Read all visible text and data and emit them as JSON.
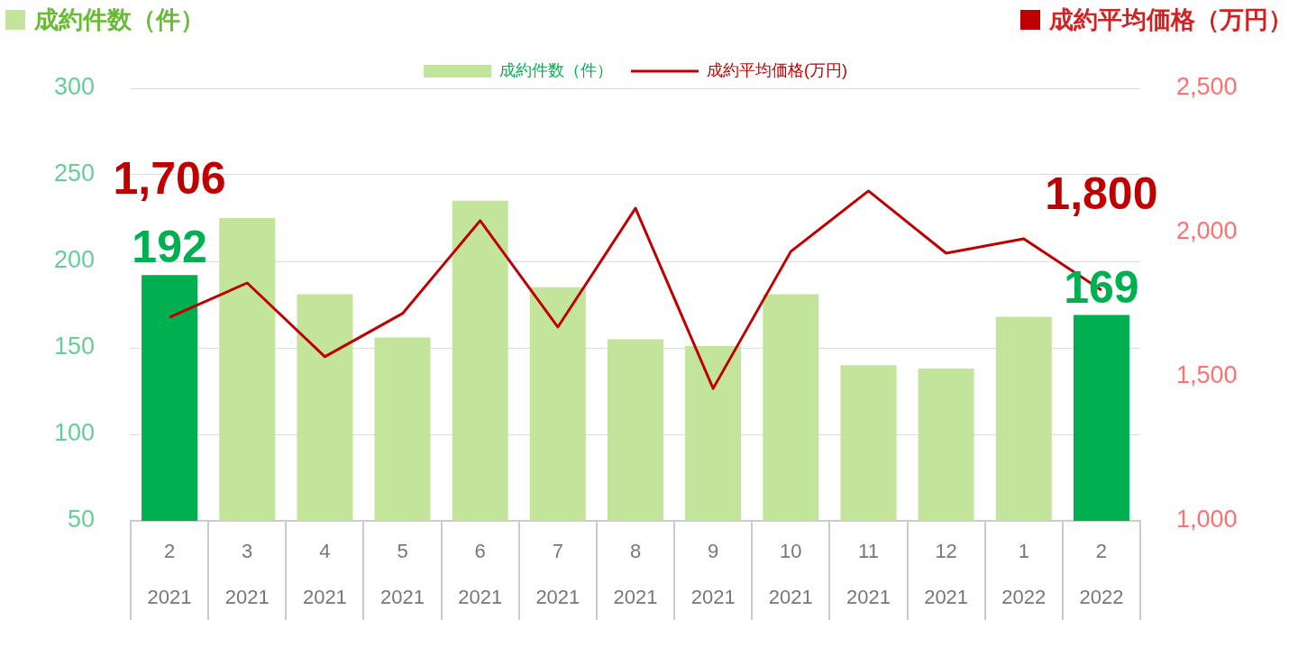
{
  "chart_data": {
    "type": "bar",
    "ylabel": "成約件数（件）",
    "y2label": "成約平均価格（万円）",
    "categories": [
      "2\n2021",
      "3\n2021",
      "4\n2021",
      "5\n2021",
      "6\n2021",
      "7\n2021",
      "8\n2021",
      "9\n2021",
      "10\n2021",
      "11\n2021",
      "12\n2021",
      "1\n2022",
      "2\n2022"
    ],
    "series": [
      {
        "name": "成約件数（件）",
        "color": "#c3e59b",
        "colors": [
          "#00b050",
          "#c3e59b",
          "#c3e59b",
          "#c3e59b",
          "#c3e59b",
          "#c3e59b",
          "#c3e59b",
          "#c3e59b",
          "#c3e59b",
          "#c3e59b",
          "#c3e59b",
          "#c3e59b",
          "#00b050"
        ],
        "values": [
          192,
          225,
          181,
          156,
          235,
          185,
          155,
          151,
          181,
          140,
          138,
          168,
          169
        ],
        "value_labels": [
          "192",
          null,
          null,
          null,
          null,
          null,
          null,
          null,
          null,
          null,
          null,
          null,
          "169"
        ]
      },
      {
        "name": "成約平均価格(万円)",
        "type": "line",
        "axis": "y2",
        "color": "#c00000",
        "values": [
          1706,
          1825,
          1569,
          1719,
          2041,
          1672,
          2084,
          1459,
          1934,
          2144,
          1928,
          1978,
          1800
        ],
        "value_labels": [
          "1,706",
          null,
          null,
          null,
          null,
          null,
          null,
          null,
          null,
          null,
          null,
          null,
          "1,800"
        ]
      }
    ],
    "ylim": [
      50,
      300
    ],
    "yticks": [
      50,
      100,
      150,
      200,
      250,
      300
    ],
    "y2lim": [
      1000,
      2500
    ],
    "y2ticks": [
      {
        "value": 1000,
        "label": "1,000"
      },
      {
        "value": 1500,
        "label": "1,500"
      },
      {
        "value": 2000,
        "label": "2,000"
      },
      {
        "value": 2500,
        "label": "2,500"
      }
    ],
    "grid": "y",
    "legend": "top",
    "marker": "none"
  }
}
